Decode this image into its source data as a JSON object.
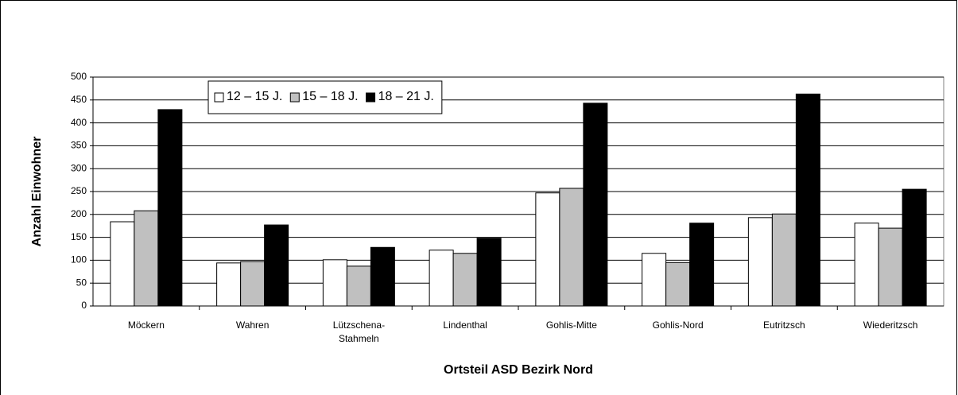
{
  "chart_data": {
    "type": "bar",
    "x_label": "Ortsteil ASD Bezirk Nord",
    "y_label": "Anzahl Einwohner",
    "categories": [
      "Möckern",
      "Wahren",
      "Lützschena-Stahmeln",
      "Lindenthal",
      "Gohlis-Mitte",
      "Gohlis-Nord",
      "Eutritzsch",
      "Wiederitzsch"
    ],
    "series": [
      {
        "name": "12 – 15 J.",
        "color": "#ffffff",
        "values": [
          184,
          94,
          101,
          122,
          247,
          115,
          193,
          181
        ]
      },
      {
        "name": "15 – 18 J.",
        "color": "#c0c0c0",
        "values": [
          208,
          97,
          87,
          115,
          257,
          95,
          201,
          170
        ]
      },
      {
        "name": "18 – 21 J.",
        "color": "#000000",
        "values": [
          429,
          177,
          128,
          148,
          443,
          181,
          463,
          255
        ]
      }
    ],
    "ylim": [
      0,
      500
    ],
    "yticks": [
      0,
      50,
      100,
      150,
      200,
      250,
      300,
      350,
      400,
      450,
      500
    ],
    "grid": true,
    "legend": "top-left"
  }
}
